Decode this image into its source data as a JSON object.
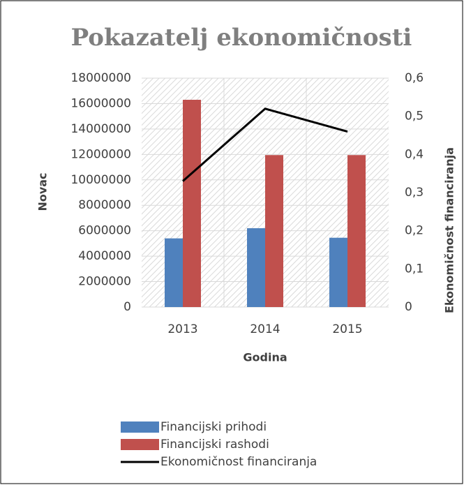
{
  "chart_data": {
    "type": "bar",
    "title": "Pokazatelj ekonomičnosti",
    "x_label": "Godina",
    "y_label": "Novac",
    "y2_label": "Ekonomičnost financiranja",
    "categories": [
      "2013",
      "2014",
      "2015"
    ],
    "series": [
      {
        "name": "Financijski prihodi",
        "color": "#4f81bd",
        "values": [
          5400000,
          6200000,
          5450000
        ]
      },
      {
        "name": "Financijski rashodi",
        "color": "#c0504d",
        "values": [
          16300000,
          11950000,
          11950000
        ]
      },
      {
        "name": "Ekonomičnost financiranja",
        "color": "#000000",
        "type": "line",
        "axis": "y2",
        "values": [
          0.33,
          0.52,
          0.46
        ]
      }
    ],
    "ylim": [
      0,
      18000000
    ],
    "yticks": [
      0,
      2000000,
      4000000,
      6000000,
      8000000,
      10000000,
      12000000,
      14000000,
      16000000,
      18000000
    ],
    "y2lim": [
      0,
      0.6
    ],
    "y2ticks": [
      0,
      {
        "value": 0.1,
        "label": "0,1"
      },
      {
        "value": 0.2,
        "label": "0,2"
      },
      {
        "value": 0.3,
        "label": "0,3"
      },
      {
        "value": 0.4,
        "label": "0,4"
      },
      {
        "value": 0.5,
        "label": "0,5"
      },
      {
        "value": 0.6,
        "label": "0,6"
      }
    ],
    "grid": true,
    "legend": "bottom"
  }
}
